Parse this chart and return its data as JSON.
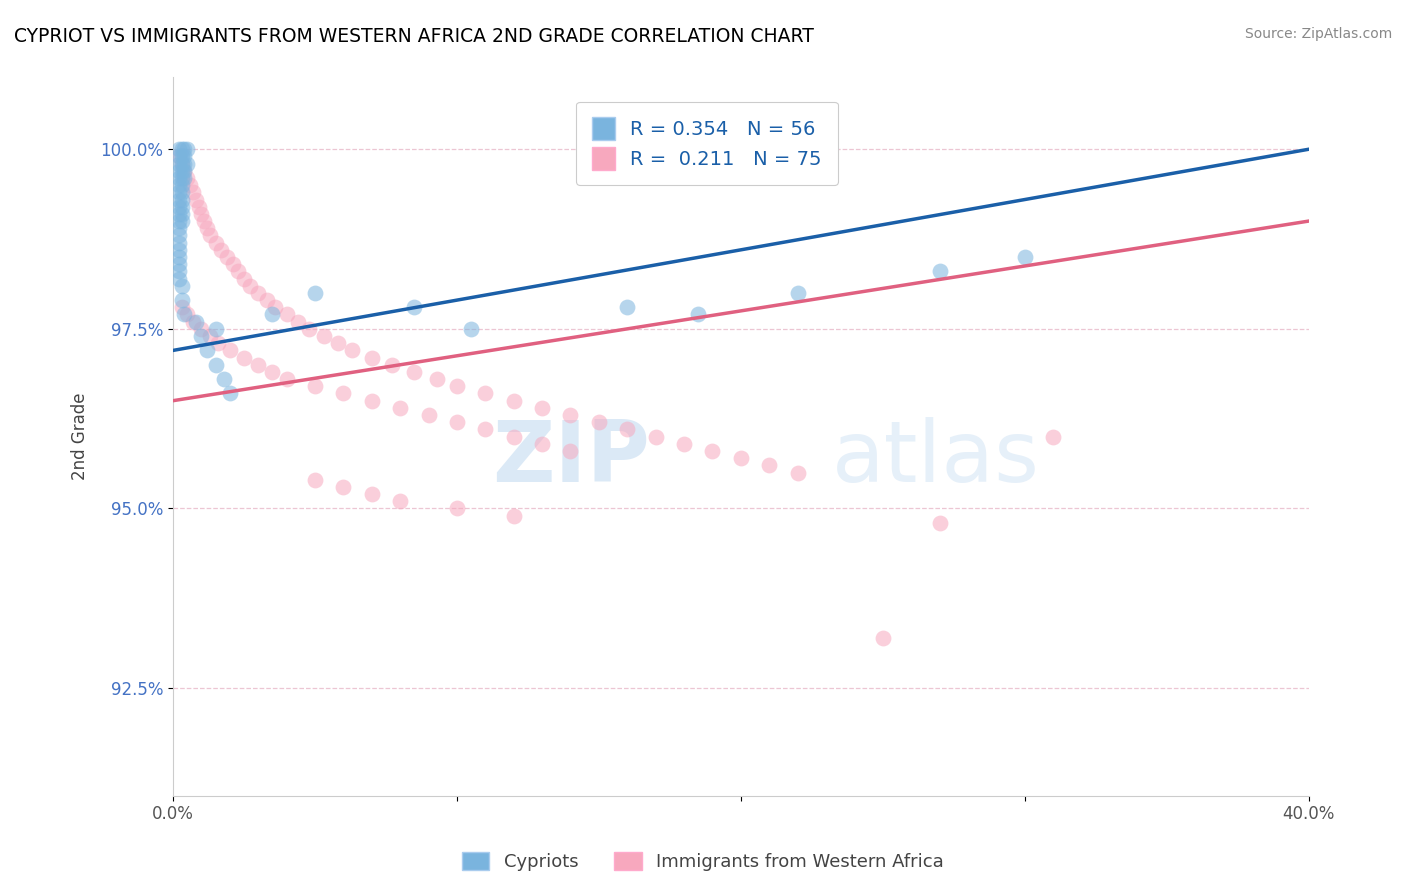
{
  "title": "CYPRIOT VS IMMIGRANTS FROM WESTERN AFRICA 2ND GRADE CORRELATION CHART",
  "source": "Source: ZipAtlas.com",
  "ylabel": "2nd Grade",
  "xlim": [
    0.0,
    0.4
  ],
  "ylim": [
    0.91,
    1.01
  ],
  "xtick_vals": [
    0.0,
    0.1,
    0.2,
    0.3,
    0.4
  ],
  "xtick_labels": [
    "0.0%",
    "",
    "",
    "",
    "40.0%"
  ],
  "ytick_vals": [
    0.925,
    0.95,
    0.975,
    1.0
  ],
  "ytick_labels": [
    "92.5%",
    "95.0%",
    "97.5%",
    "100.0%"
  ],
  "blue_color": "#7ab4de",
  "pink_color": "#f7a8be",
  "blue_line_color": "#1a5fa8",
  "pink_line_color": "#e06080",
  "legend_label_blue": "Cypriots",
  "legend_label_pink": "Immigrants from Western Africa",
  "watermark_zip": "ZIP",
  "watermark_atlas": "atlas",
  "blue_scatter": [
    [
      0.002,
      1.0
    ],
    [
      0.003,
      1.0
    ],
    [
      0.004,
      1.0
    ],
    [
      0.005,
      1.0
    ],
    [
      0.002,
      0.999
    ],
    [
      0.003,
      0.999
    ],
    [
      0.004,
      0.999
    ],
    [
      0.002,
      0.998
    ],
    [
      0.003,
      0.998
    ],
    [
      0.004,
      0.998
    ],
    [
      0.005,
      0.998
    ],
    [
      0.002,
      0.997
    ],
    [
      0.003,
      0.997
    ],
    [
      0.004,
      0.997
    ],
    [
      0.002,
      0.996
    ],
    [
      0.003,
      0.996
    ],
    [
      0.004,
      0.996
    ],
    [
      0.002,
      0.995
    ],
    [
      0.003,
      0.995
    ],
    [
      0.002,
      0.994
    ],
    [
      0.003,
      0.994
    ],
    [
      0.002,
      0.993
    ],
    [
      0.003,
      0.993
    ],
    [
      0.002,
      0.992
    ],
    [
      0.003,
      0.992
    ],
    [
      0.002,
      0.991
    ],
    [
      0.003,
      0.991
    ],
    [
      0.002,
      0.99
    ],
    [
      0.003,
      0.99
    ],
    [
      0.002,
      0.989
    ],
    [
      0.002,
      0.988
    ],
    [
      0.002,
      0.987
    ],
    [
      0.002,
      0.986
    ],
    [
      0.002,
      0.985
    ],
    [
      0.002,
      0.984
    ],
    [
      0.002,
      0.983
    ],
    [
      0.002,
      0.982
    ],
    [
      0.003,
      0.981
    ],
    [
      0.003,
      0.979
    ],
    [
      0.004,
      0.977
    ],
    [
      0.05,
      0.98
    ],
    [
      0.16,
      0.978
    ],
    [
      0.185,
      0.977
    ],
    [
      0.22,
      0.98
    ],
    [
      0.27,
      0.983
    ],
    [
      0.3,
      0.985
    ],
    [
      0.015,
      0.975
    ],
    [
      0.035,
      0.977
    ],
    [
      0.105,
      0.975
    ],
    [
      0.085,
      0.978
    ],
    [
      0.008,
      0.976
    ],
    [
      0.01,
      0.974
    ],
    [
      0.012,
      0.972
    ],
    [
      0.015,
      0.97
    ],
    [
      0.018,
      0.968
    ],
    [
      0.02,
      0.966
    ]
  ],
  "pink_scatter": [
    [
      0.002,
      0.999
    ],
    [
      0.003,
      0.998
    ],
    [
      0.004,
      0.997
    ],
    [
      0.005,
      0.996
    ],
    [
      0.006,
      0.995
    ],
    [
      0.007,
      0.994
    ],
    [
      0.008,
      0.993
    ],
    [
      0.009,
      0.992
    ],
    [
      0.01,
      0.991
    ],
    [
      0.011,
      0.99
    ],
    [
      0.012,
      0.989
    ],
    [
      0.013,
      0.988
    ],
    [
      0.015,
      0.987
    ],
    [
      0.017,
      0.986
    ],
    [
      0.019,
      0.985
    ],
    [
      0.021,
      0.984
    ],
    [
      0.023,
      0.983
    ],
    [
      0.025,
      0.982
    ],
    [
      0.027,
      0.981
    ],
    [
      0.03,
      0.98
    ],
    [
      0.033,
      0.979
    ],
    [
      0.036,
      0.978
    ],
    [
      0.04,
      0.977
    ],
    [
      0.044,
      0.976
    ],
    [
      0.048,
      0.975
    ],
    [
      0.053,
      0.974
    ],
    [
      0.058,
      0.973
    ],
    [
      0.063,
      0.972
    ],
    [
      0.07,
      0.971
    ],
    [
      0.077,
      0.97
    ],
    [
      0.085,
      0.969
    ],
    [
      0.093,
      0.968
    ],
    [
      0.1,
      0.967
    ],
    [
      0.11,
      0.966
    ],
    [
      0.12,
      0.965
    ],
    [
      0.13,
      0.964
    ],
    [
      0.14,
      0.963
    ],
    [
      0.15,
      0.962
    ],
    [
      0.16,
      0.961
    ],
    [
      0.17,
      0.96
    ],
    [
      0.18,
      0.959
    ],
    [
      0.19,
      0.958
    ],
    [
      0.2,
      0.957
    ],
    [
      0.21,
      0.956
    ],
    [
      0.22,
      0.955
    ],
    [
      0.003,
      0.978
    ],
    [
      0.005,
      0.977
    ],
    [
      0.007,
      0.976
    ],
    [
      0.01,
      0.975
    ],
    [
      0.013,
      0.974
    ],
    [
      0.016,
      0.973
    ],
    [
      0.02,
      0.972
    ],
    [
      0.025,
      0.971
    ],
    [
      0.03,
      0.97
    ],
    [
      0.035,
      0.969
    ],
    [
      0.04,
      0.968
    ],
    [
      0.05,
      0.967
    ],
    [
      0.06,
      0.966
    ],
    [
      0.07,
      0.965
    ],
    [
      0.08,
      0.964
    ],
    [
      0.09,
      0.963
    ],
    [
      0.1,
      0.962
    ],
    [
      0.11,
      0.961
    ],
    [
      0.12,
      0.96
    ],
    [
      0.13,
      0.959
    ],
    [
      0.14,
      0.958
    ],
    [
      0.05,
      0.954
    ],
    [
      0.06,
      0.953
    ],
    [
      0.07,
      0.952
    ],
    [
      0.08,
      0.951
    ],
    [
      0.1,
      0.95
    ],
    [
      0.12,
      0.949
    ],
    [
      0.27,
      0.948
    ],
    [
      0.31,
      0.96
    ],
    [
      0.25,
      0.932
    ]
  ],
  "blue_trend_x": [
    0.0,
    0.4
  ],
  "blue_trend_y": [
    0.972,
    1.0
  ],
  "pink_trend_x": [
    0.0,
    0.4
  ],
  "pink_trend_y": [
    0.965,
    0.99
  ]
}
